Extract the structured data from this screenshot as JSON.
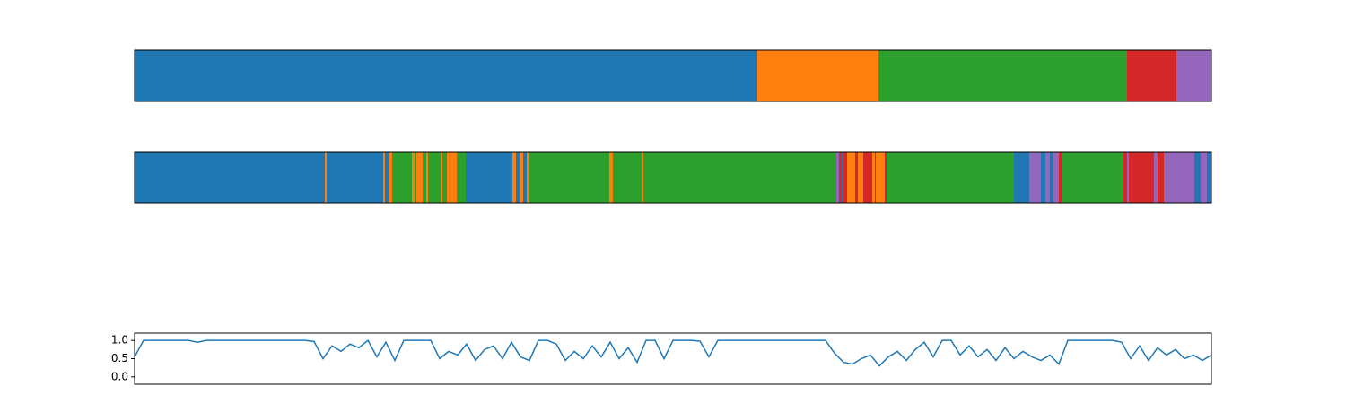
{
  "chart_data": [
    {
      "type": "segments",
      "xlim": [
        0,
        1200
      ],
      "breaks": [
        0,
        694,
        829,
        1106,
        1161,
        1200
      ],
      "colors": [
        "#1f77b4",
        "#ff7f0e",
        "#2ca02c",
        "#d62728",
        "#9467bd"
      ]
    },
    {
      "type": "segments",
      "xlim": [
        0,
        1200
      ],
      "breaks": [
        0,
        212,
        214,
        277,
        279,
        283,
        287,
        309,
        312,
        314,
        321,
        325,
        327,
        341,
        343,
        348,
        359,
        369,
        421,
        425,
        429,
        433,
        437,
        440,
        529,
        533,
        566,
        567,
        782,
        785,
        788,
        790,
        794,
        803,
        806,
        812,
        822,
        825,
        826,
        836,
        838,
        980,
        997,
        1010,
        1015,
        1020,
        1024,
        1030,
        1033,
        1102,
        1106,
        1108,
        1136,
        1140,
        1147,
        1181,
        1188,
        1195,
        1200
      ],
      "colors": [
        "#1f77b4",
        "#ff7f0e",
        "#1f77b4",
        "#ff7f0e",
        "#1f77b4",
        "#ff7f0e",
        "#2ca02c",
        "#ff7f0e",
        "#2ca02c",
        "#ff7f0e",
        "#2ca02c",
        "#ff7f0e",
        "#2ca02c",
        "#ff7f0e",
        "#2ca02c",
        "#ff7f0e",
        "#2ca02c",
        "#1f77b4",
        "#ff7f0e",
        "#1f77b4",
        "#ff7f0e",
        "#1f77b4",
        "#ff7f0e",
        "#2ca02c",
        "#ff7f0e",
        "#2ca02c",
        "#ff7f0e",
        "#2ca02c",
        "#9467bd",
        "#d62728",
        "#1f77b4",
        "#d62728",
        "#ff7f0e",
        "#d62728",
        "#ff7f0e",
        "#d62728",
        "#ff7f0e",
        "#d62728",
        "#ff7f0e",
        "#d62728",
        "#2ca02c",
        "#1f77b4",
        "#9467bd",
        "#1f77b4",
        "#9467bd",
        "#1f77b4",
        "#9467bd",
        "#d62728",
        "#2ca02c",
        "#d62728",
        "#9467bd",
        "#d62728",
        "#9467bd",
        "#d62728",
        "#9467bd",
        "#1f77b4",
        "#9467bd",
        "#1f77b4"
      ]
    },
    {
      "type": "line",
      "xlim": [
        0,
        1200
      ],
      "ylim": [
        -0.2,
        1.2
      ],
      "yticks": [
        {
          "value": 0,
          "label": "0.0"
        },
        {
          "value": 0.5,
          "label": "0.5"
        },
        {
          "value": 1,
          "label": "1.0"
        }
      ],
      "x": [
        0,
        10,
        20,
        30,
        40,
        50,
        60,
        70,
        80,
        90,
        100,
        110,
        120,
        130,
        140,
        150,
        160,
        170,
        180,
        190,
        200,
        210,
        220,
        230,
        240,
        250,
        260,
        270,
        280,
        290,
        300,
        310,
        320,
        330,
        340,
        350,
        360,
        370,
        380,
        390,
        400,
        410,
        420,
        430,
        440,
        450,
        460,
        470,
        480,
        490,
        500,
        510,
        520,
        530,
        540,
        550,
        560,
        570,
        580,
        590,
        600,
        610,
        620,
        630,
        640,
        650,
        660,
        670,
        680,
        690,
        700,
        710,
        720,
        730,
        740,
        750,
        760,
        770,
        780,
        790,
        800,
        810,
        820,
        830,
        840,
        850,
        860,
        870,
        880,
        890,
        900,
        910,
        920,
        930,
        940,
        950,
        960,
        970,
        980,
        990,
        1000,
        1010,
        1020,
        1030,
        1040,
        1050,
        1060,
        1070,
        1080,
        1090,
        1100,
        1110,
        1120,
        1130,
        1140,
        1150,
        1160,
        1170,
        1180,
        1190,
        1200
      ],
      "series": [
        {
          "color": "#1f77b4",
          "values": [
            0.55,
            1,
            1,
            1,
            1,
            1,
            1,
            0.95,
            1,
            1,
            1,
            1,
            1,
            1,
            1,
            1,
            1,
            1,
            1,
            1,
            0.97,
            0.5,
            0.85,
            0.7,
            0.9,
            0.8,
            1,
            0.55,
            0.95,
            0.45,
            1,
            1,
            1,
            1,
            0.5,
            0.7,
            0.6,
            0.9,
            0.45,
            0.75,
            0.85,
            0.5,
            0.95,
            0.55,
            0.45,
            1,
            1,
            0.9,
            0.45,
            0.7,
            0.5,
            0.85,
            0.55,
            0.95,
            0.5,
            0.8,
            0.4,
            1,
            1,
            0.5,
            1,
            1,
            1,
            0.98,
            0.55,
            1,
            1,
            1,
            1,
            1,
            1,
            1,
            1,
            1,
            1,
            1,
            1,
            1,
            0.65,
            0.4,
            0.35,
            0.5,
            0.6,
            0.3,
            0.55,
            0.7,
            0.45,
            0.75,
            0.95,
            0.55,
            1,
            1,
            0.6,
            0.85,
            0.55,
            0.75,
            0.45,
            0.8,
            0.5,
            0.7,
            0.55,
            0.45,
            0.6,
            0.35,
            1,
            1,
            1,
            1,
            1,
            1,
            0.95,
            0.5,
            0.85,
            0.45,
            0.8,
            0.6,
            0.75,
            0.5,
            0.6,
            0.45,
            0.6
          ]
        }
      ]
    }
  ]
}
